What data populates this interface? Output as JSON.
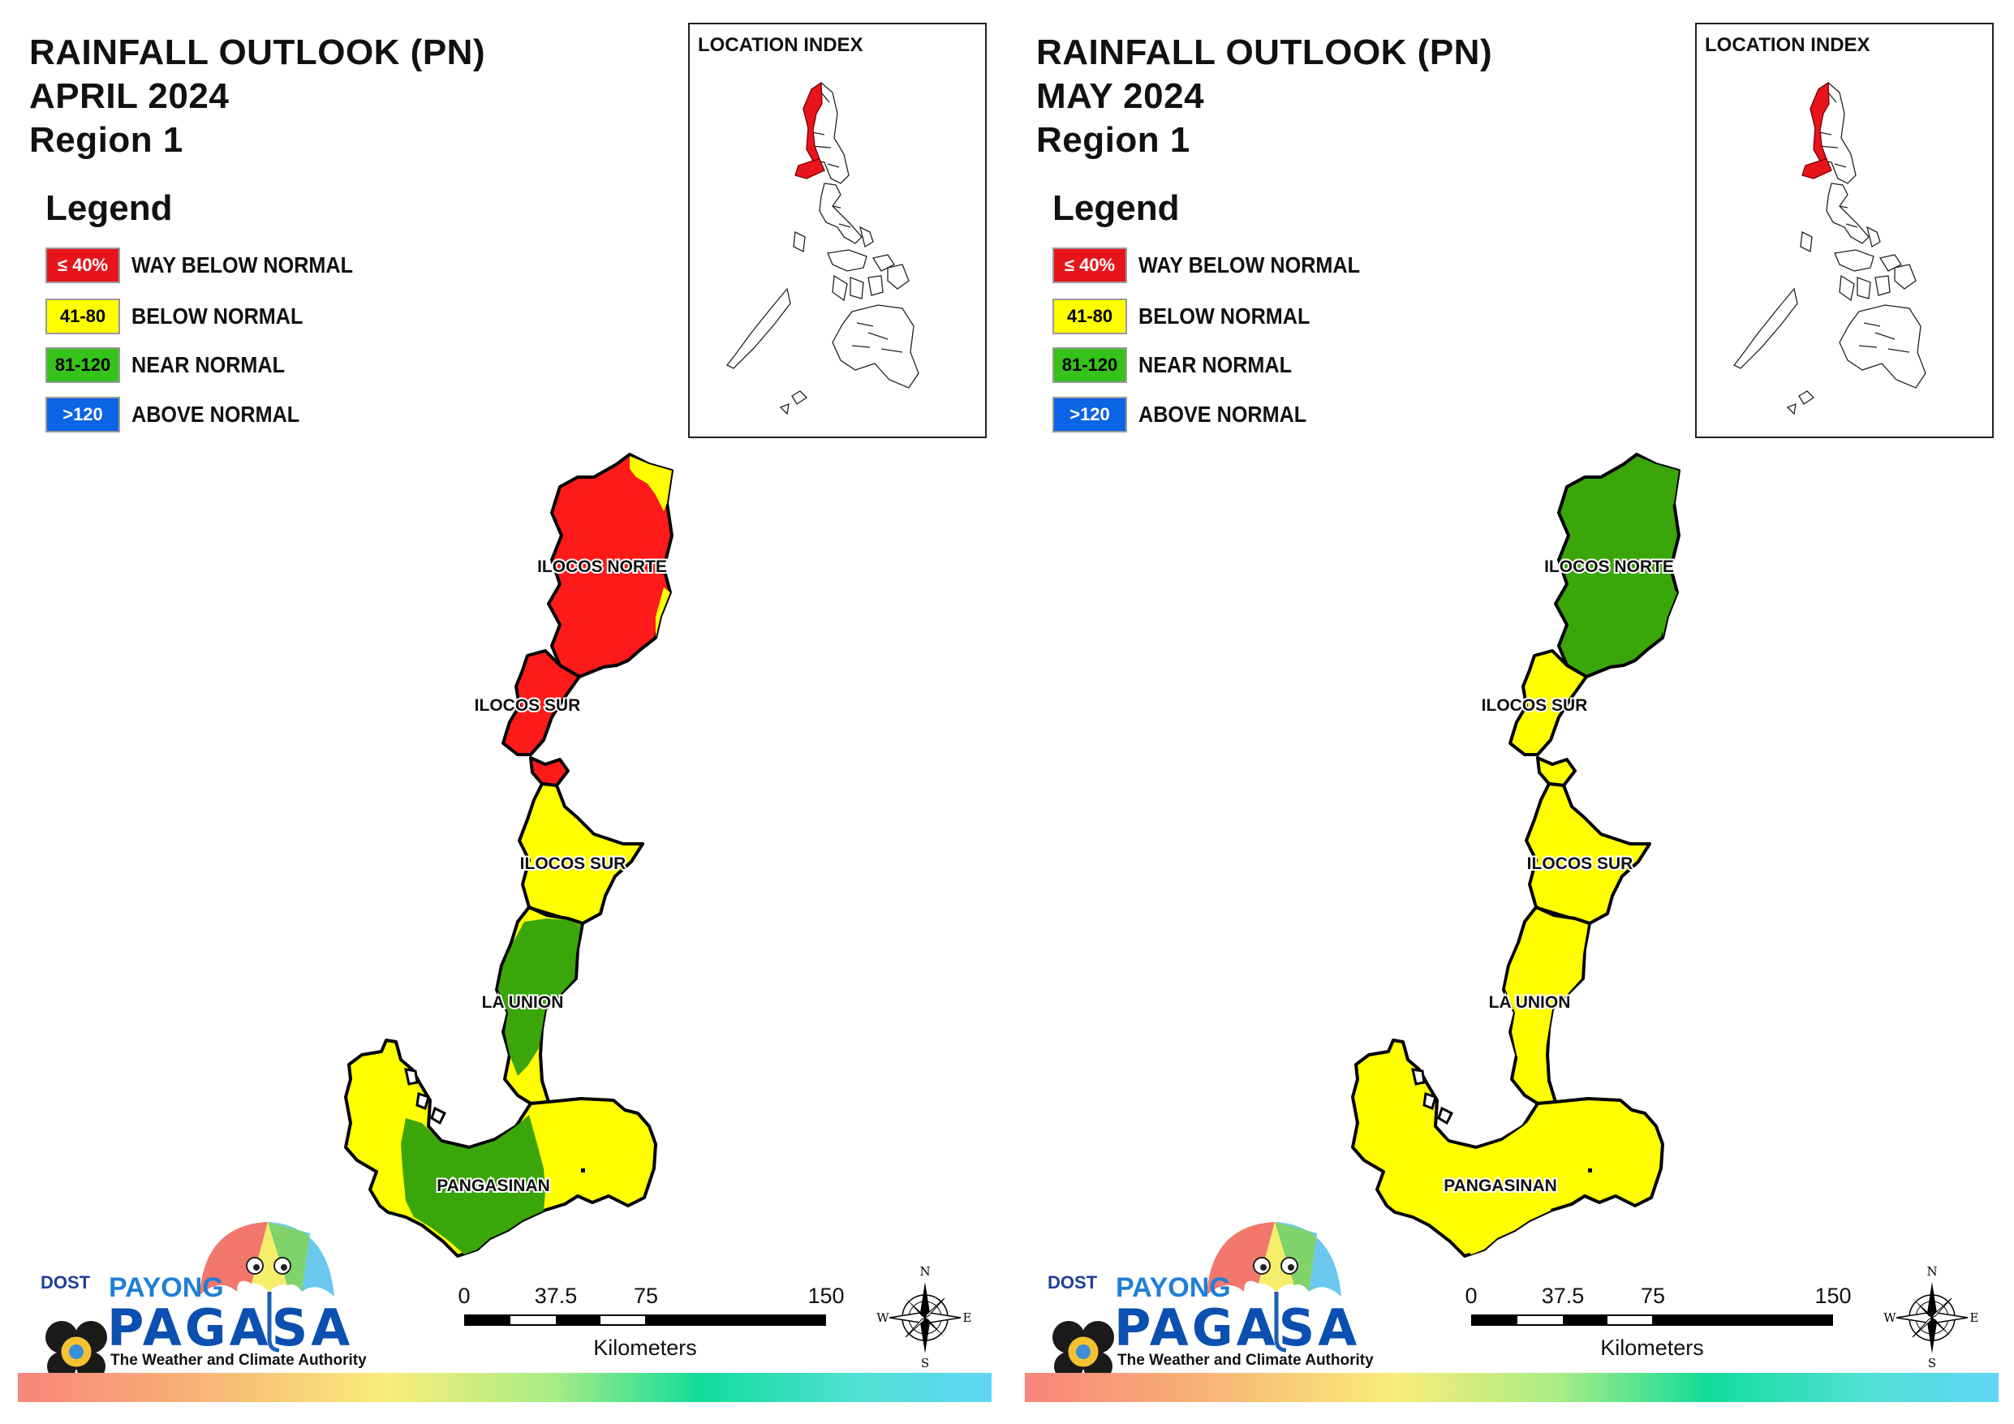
{
  "panels": [
    {
      "title_line1": "RAINFALL OUTLOOK (PN)",
      "title_line2": "APRIL 2024",
      "title_line3": "Region 1",
      "province_fills": {
        "ilocos_norte": "#ff1a1a",
        "ilocos_norte_patch": "#ffff00",
        "ilocos_sur_north": "#ff1a1a",
        "ilocos_sur_south": "#ffff00",
        "la_union": "#ffff00",
        "la_union_patch": "#3aa60a",
        "pangasinan": "#ffff00",
        "pangasinan_patch": "#3aa60a"
      }
    },
    {
      "title_line1": "RAINFALL OUTLOOK (PN)",
      "title_line2": "MAY 2024",
      "title_line3": "Region 1",
      "province_fills": {
        "ilocos_norte": "#3aa60a",
        "ilocos_norte_patch": "#3aa60a",
        "ilocos_sur_north": "#ffff00",
        "ilocos_sur_south": "#ffff00",
        "la_union": "#ffff00",
        "la_union_patch": "#ffff00",
        "pangasinan": "#ffff00",
        "pangasinan_patch": "#ffff00"
      }
    }
  ],
  "legend": {
    "heading": "Legend",
    "items": [
      {
        "range": "≤ 40%",
        "label": "WAY BELOW NORMAL",
        "color": "#e8141b",
        "text_color": "#ffffff"
      },
      {
        "range": "41-80",
        "label": "BELOW NORMAL",
        "color": "#ffff00",
        "text_color": "#000000"
      },
      {
        "range": "81-120",
        "label": "NEAR NORMAL",
        "color": "#35c31a",
        "text_color": "#000000"
      },
      {
        "range": ">120",
        "label": "ABOVE NORMAL",
        "color": "#0b63e5",
        "text_color": "#ffffff"
      }
    ]
  },
  "location_index": {
    "title": "LOCATION INDEX",
    "highlight_color": "#e8141b"
  },
  "map_labels": {
    "ilocos_norte": "ILOCOS NORTE",
    "ilocos_sur_upper": "ILOCOS SUR",
    "ilocos_sur_lower": "ILOCOS SUR",
    "la_union": "LA UNION",
    "pangasinan": "PANGASINAN"
  },
  "scale": {
    "ticks": [
      "0",
      "37.5",
      "75",
      "150"
    ],
    "unit": "Kilometers"
  },
  "compass": {
    "n": "N",
    "e": "E",
    "s": "S",
    "w": "W"
  },
  "logo": {
    "dost": "DOST",
    "payong": "PAYONG",
    "pagasa": "PAGASA",
    "tagline": "The Weather and Climate Authority"
  }
}
